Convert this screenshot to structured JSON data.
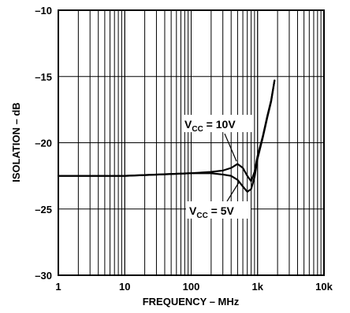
{
  "chart_data": {
    "type": "line",
    "title": "",
    "xlabel": "FREQUENCY – MHz",
    "ylabel": "ISOLATION – dB",
    "x_scale": "log",
    "xlim": [
      1,
      10000
    ],
    "ylim": [
      -30,
      -10
    ],
    "grid": true,
    "x_ticks": [
      {
        "value": 1,
        "label": "1"
      },
      {
        "value": 10,
        "label": "10"
      },
      {
        "value": 100,
        "label": "100"
      },
      {
        "value": 1000,
        "label": "1k"
      },
      {
        "value": 10000,
        "label": "10k"
      }
    ],
    "y_ticks": [
      {
        "value": -10,
        "label": "–10"
      },
      {
        "value": -15,
        "label": "–15"
      },
      {
        "value": -20,
        "label": "–20"
      },
      {
        "value": -25,
        "label": "–25"
      },
      {
        "value": -30,
        "label": "–30"
      }
    ],
    "series": [
      {
        "name": "VCC = 10V",
        "x": [
          1,
          10,
          100,
          200,
          300,
          400,
          500,
          600,
          700,
          800,
          900,
          1000,
          1200,
          1400,
          1600,
          1800
        ],
        "y": [
          -22.5,
          -22.5,
          -22.3,
          -22.2,
          -22.1,
          -21.9,
          -21.6,
          -21.9,
          -22.5,
          -22.9,
          -22.2,
          -21.0,
          -19.5,
          -18.0,
          -16.8,
          -15.3
        ]
      },
      {
        "name": "VCC = 5V",
        "x": [
          1,
          10,
          100,
          200,
          300,
          400,
          500,
          600,
          700,
          800,
          900,
          1000,
          1200,
          1400,
          1600,
          1800
        ],
        "y": [
          -22.5,
          -22.5,
          -22.3,
          -22.3,
          -22.4,
          -22.5,
          -22.8,
          -23.3,
          -23.7,
          -23.5,
          -22.6,
          -21.2,
          -19.6,
          -18.1,
          -16.9,
          -15.3
        ]
      }
    ],
    "annotations": [
      {
        "main": "V",
        "sub": "CC",
        "rest": " = 10V"
      },
      {
        "main": "V",
        "sub": "CC",
        "rest": " = 5V"
      }
    ]
  }
}
